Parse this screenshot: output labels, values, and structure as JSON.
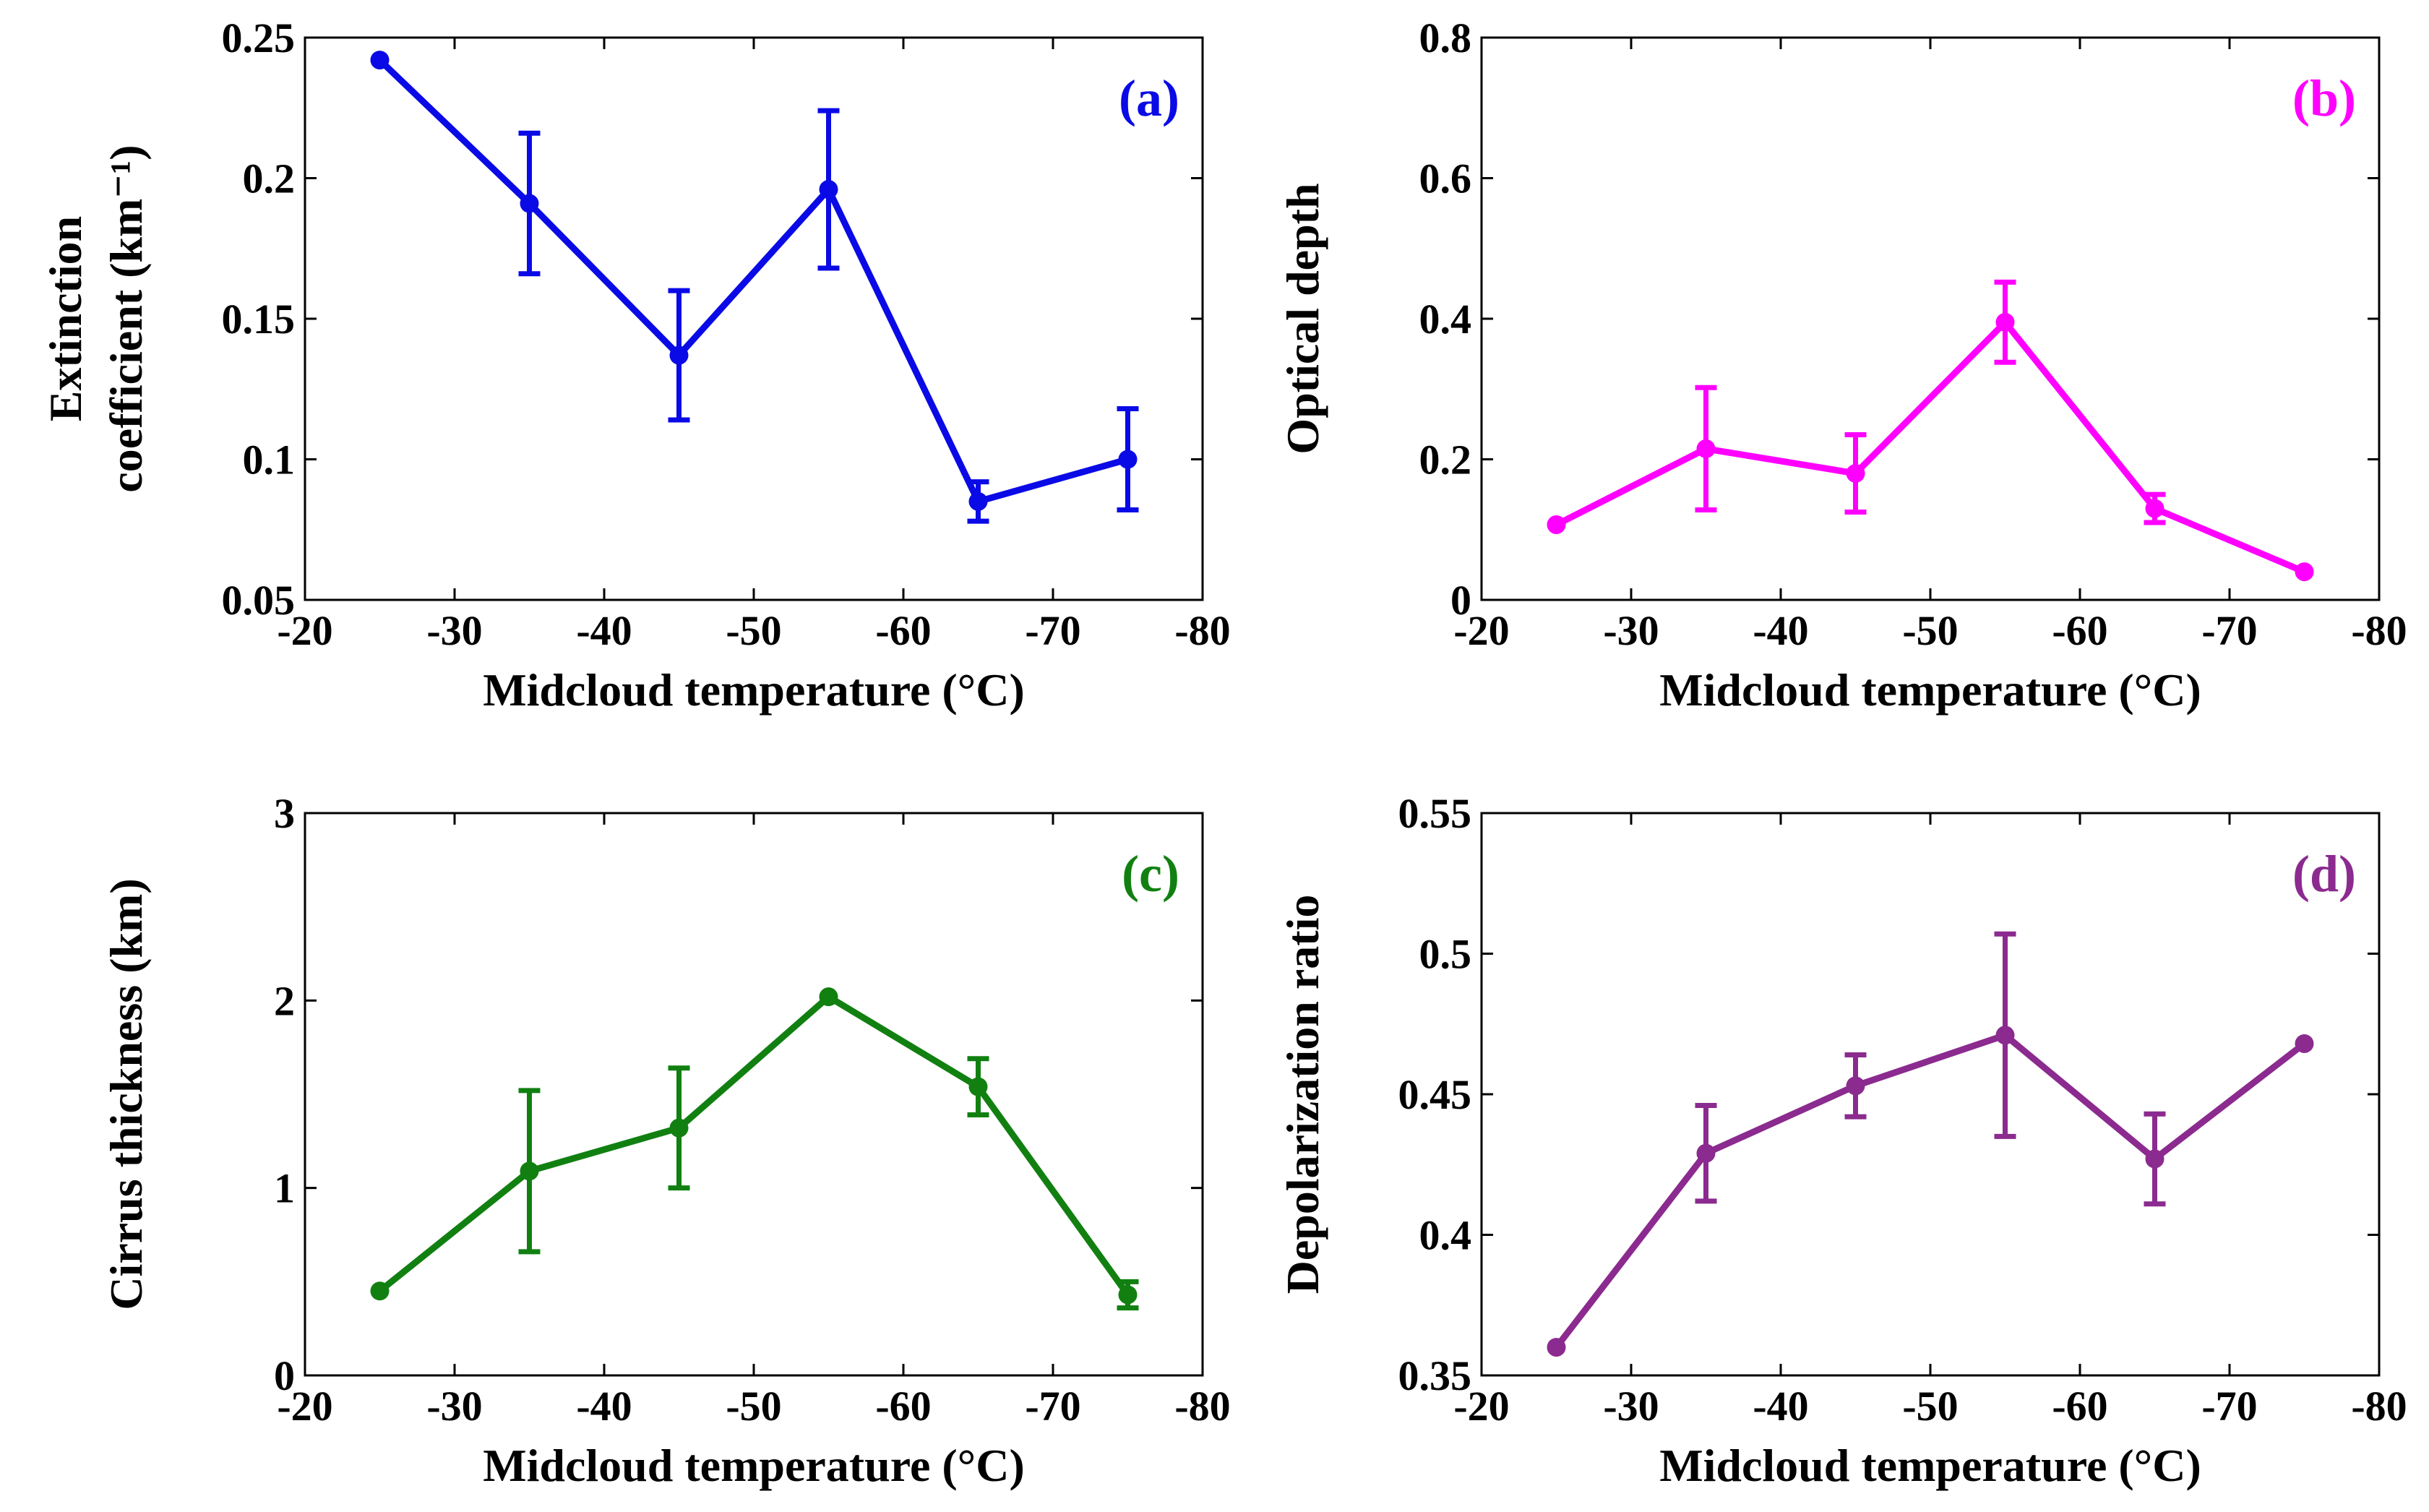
{
  "chart_data": [
    {
      "type": "line",
      "panel_label": "(a)",
      "color": "#0a0ae6",
      "title": "",
      "xlabel": "Midcloud temperature (°C)",
      "ylabel_lines": [
        "Extinction",
        "coefficient (km⁻¹)"
      ],
      "xlim": [
        -20,
        -80
      ],
      "ylim": [
        0.05,
        0.25
      ],
      "xticks": [
        -20,
        -30,
        -40,
        -50,
        -60,
        -70,
        -80
      ],
      "xtick_labels": [
        "-20",
        "-30",
        "-40",
        "-50",
        "-60",
        "-70",
        "-80"
      ],
      "yticks": [
        0.05,
        0.1,
        0.15,
        0.2,
        0.25
      ],
      "ytick_labels": [
        "0.05",
        "0.1",
        "0.15",
        "0.2",
        "0.25"
      ],
      "x": [
        -25,
        -35,
        -45,
        -55,
        -65,
        -75
      ],
      "y": [
        0.242,
        0.191,
        0.137,
        0.196,
        0.085,
        0.1
      ],
      "err": [
        0,
        0.025,
        0.023,
        0.028,
        0.007,
        0.018
      ]
    },
    {
      "type": "line",
      "panel_label": "(b)",
      "color": "#ff00ff",
      "title": "",
      "xlabel": "Midcloud temperature (°C)",
      "ylabel_lines": [
        "Optical depth"
      ],
      "xlim": [
        -20,
        -80
      ],
      "ylim": [
        0,
        0.8
      ],
      "xticks": [
        -20,
        -30,
        -40,
        -50,
        -60,
        -70,
        -80
      ],
      "xtick_labels": [
        "-20",
        "-30",
        "-40",
        "-50",
        "-60",
        "-70",
        "-80"
      ],
      "yticks": [
        0,
        0.2,
        0.4,
        0.6,
        0.8
      ],
      "ytick_labels": [
        "0",
        "0.2",
        "0.4",
        "0.6",
        "0.8"
      ],
      "x": [
        -25,
        -35,
        -45,
        -55,
        -65,
        -75
      ],
      "y": [
        0.107,
        0.215,
        0.18,
        0.395,
        0.13,
        0.04
      ],
      "err": [
        0,
        0.087,
        0.055,
        0.057,
        0.02,
        0
      ]
    },
    {
      "type": "line",
      "panel_label": "(c)",
      "color": "#118011",
      "title": "",
      "xlabel": "Midcloud temperature (°C)",
      "ylabel_lines": [
        "Cirrus thickness (km)"
      ],
      "xlim": [
        -20,
        -80
      ],
      "ylim": [
        0,
        3
      ],
      "xticks": [
        -20,
        -30,
        -40,
        -50,
        -60,
        -70,
        -80
      ],
      "xtick_labels": [
        "-20",
        "-30",
        "-40",
        "-50",
        "-60",
        "-70",
        "-80"
      ],
      "yticks": [
        0,
        1,
        2,
        3
      ],
      "ytick_labels": [
        "0",
        "1",
        "2",
        "3"
      ],
      "x": [
        -25,
        -35,
        -45,
        -55,
        -65,
        -75
      ],
      "y": [
        0.45,
        1.09,
        1.32,
        2.02,
        1.54,
        0.43
      ],
      "err": [
        0,
        0.43,
        0.32,
        0,
        0.15,
        0.07
      ]
    },
    {
      "type": "line",
      "panel_label": "(d)",
      "color": "#8b2a8f",
      "title": "",
      "xlabel": "Midcloud temperature (°C)",
      "ylabel_lines": [
        "Depolarization ratio"
      ],
      "xlim": [
        -20,
        -80
      ],
      "ylim": [
        0.35,
        0.55
      ],
      "xticks": [
        -20,
        -30,
        -40,
        -50,
        -60,
        -70,
        -80
      ],
      "xtick_labels": [
        "-20",
        "-30",
        "-40",
        "-50",
        "-60",
        "-70",
        "-80"
      ],
      "yticks": [
        0.35,
        0.4,
        0.45,
        0.5,
        0.55
      ],
      "ytick_labels": [
        "0.35",
        "0.4",
        "0.45",
        "0.5",
        "0.55"
      ],
      "x": [
        -25,
        -35,
        -45,
        -55,
        -65,
        -75
      ],
      "y": [
        0.36,
        0.429,
        0.453,
        0.471,
        0.427,
        0.468
      ],
      "err": [
        0,
        0.017,
        0.011,
        0.036,
        0.016,
        0
      ]
    }
  ]
}
